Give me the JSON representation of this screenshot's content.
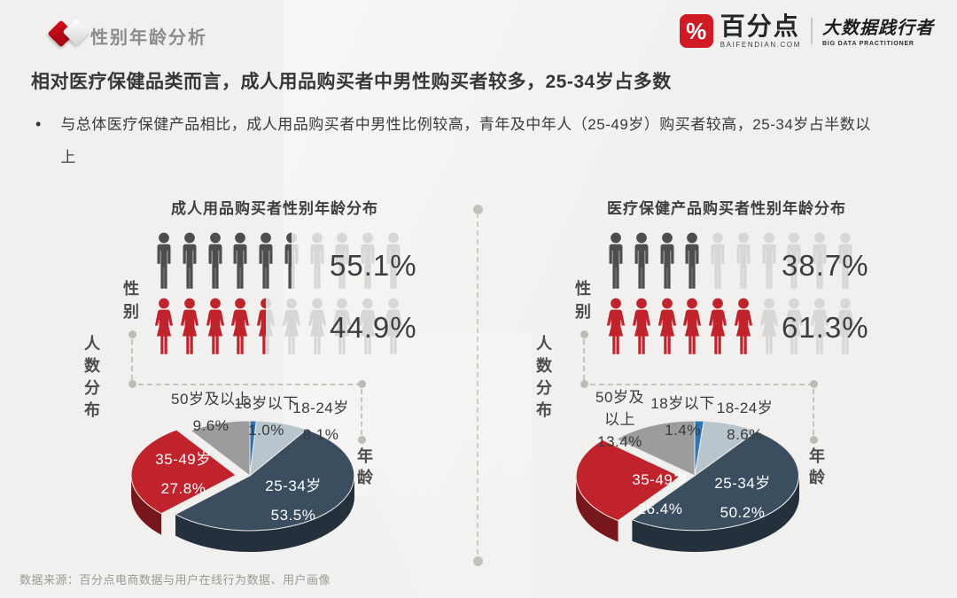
{
  "page": {
    "header_title": "性别年龄分析",
    "logo": {
      "symbol": "%",
      "brand": "百分点",
      "brand_sub": "BAIFENDIAN.COM",
      "tagline": "大数据践行者",
      "tagline_sub": "BIG DATA PRACTITIONER"
    },
    "headline": "相对医疗保健品类而言，成人用品购买者中男性购买者较多，25-34岁占多数",
    "bullet_marker": "•",
    "bullet": "与总体医疗保健产品相比，成人用品购买者中男性比例较高，青年及中年人（25-49岁）购买者较高，25-34岁占半数以上",
    "footer": "数据来源：百分点电商数据与用户在线行为数据、用户画像"
  },
  "axis_labels": {
    "gender": "性别",
    "count_distribution": "人数分布",
    "age": "年龄"
  },
  "colors": {
    "accent_red": "#c0232c",
    "figure_empty": "#d8d7d5",
    "male_fill": "#4e4e4e",
    "female_fill": "#c0232c"
  },
  "chart_data": [
    {
      "title": "成人用品购买者性别年龄分布",
      "type": "pictogram+pie",
      "gender_pictogram": {
        "type": "pictogram",
        "unit_count": 10,
        "series": [
          {
            "name": "男",
            "value": 55.1,
            "label": "55.1%",
            "color": "#4e4e4e"
          },
          {
            "name": "女",
            "value": 44.9,
            "label": "44.9%",
            "color": "#c0232c"
          }
        ]
      },
      "age_pie": {
        "type": "pie",
        "categories": [
          "18岁以下",
          "18-24岁",
          "25-34岁",
          "35-49岁",
          "50岁及以上"
        ],
        "values": [
          1.0,
          8.1,
          53.5,
          27.8,
          9.6
        ],
        "colors": [
          "#2f74b5",
          "#b9c5cd",
          "#3a4e60",
          "#c0232c",
          "#9c9c9c"
        ],
        "exploded_index": 3,
        "start_angle_deg": -90,
        "clockwise": true
      },
      "pie_labels": {
        "over50": [
          "50岁及以上",
          "9.6%"
        ],
        "under18": [
          "18岁以下",
          "1.0%"
        ],
        "age18_24": [
          "18-24岁",
          "8.1%"
        ],
        "age35_49": [
          "35-49岁",
          "27.8%"
        ],
        "age25_34": [
          "25-34岁",
          "53.5%"
        ]
      }
    },
    {
      "title": "医疗保健产品购买者性别年龄分布",
      "type": "pictogram+pie",
      "gender_pictogram": {
        "type": "pictogram",
        "unit_count": 10,
        "series": [
          {
            "name": "男",
            "value": 38.7,
            "label": "38.7%",
            "color": "#4e4e4e"
          },
          {
            "name": "女",
            "value": 61.3,
            "label": "61.3%",
            "color": "#c0232c"
          }
        ]
      },
      "age_pie": {
        "type": "pie",
        "categories": [
          "18岁以下",
          "18-24岁",
          "25-34岁",
          "35-49岁",
          "50岁及以上"
        ],
        "values": [
          1.4,
          8.6,
          50.2,
          26.4,
          13.4
        ],
        "colors": [
          "#2f74b5",
          "#b9c5cd",
          "#3a4e60",
          "#c0232c",
          "#9c9c9c"
        ],
        "exploded_index": 3,
        "start_angle_deg": -90,
        "clockwise": true
      },
      "pie_labels": {
        "over50": [
          "50岁及",
          "以上",
          "13.4%"
        ],
        "under18": [
          "18岁以下",
          "1.4%"
        ],
        "age18_24": [
          "18-24岁",
          "8.6%"
        ],
        "age35_49": [
          "35-49岁",
          "26.4%"
        ],
        "age25_34": [
          "25-34岁",
          "50.2%"
        ]
      }
    }
  ]
}
